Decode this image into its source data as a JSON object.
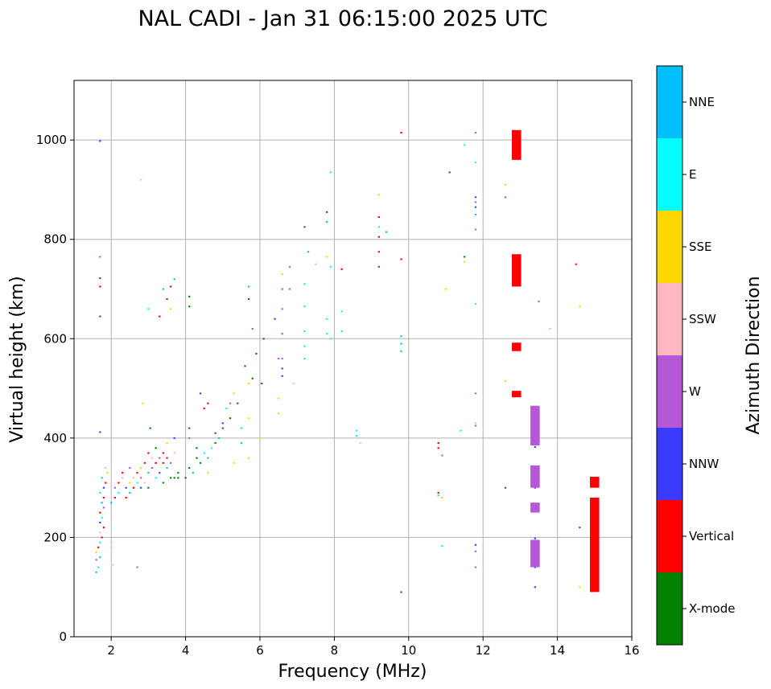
{
  "chart_data": {
    "type": "scatter",
    "title": "NAL CADI - Jan 31 06:15:00 2025 UTC",
    "xlabel": "Frequency (MHz)",
    "ylabel": "Virtual height (km)",
    "xlim": [
      1,
      16
    ],
    "ylim": [
      0,
      1120
    ],
    "xticks": [
      2,
      4,
      6,
      8,
      10,
      12,
      14,
      16
    ],
    "yticks": [
      0,
      200,
      400,
      600,
      800,
      1000
    ],
    "grid": true,
    "colorbar": {
      "label": "Azimuth Direction",
      "categories": [
        {
          "name": "X-mode",
          "color": "#008000"
        },
        {
          "name": "Vertical",
          "color": "#ff0000"
        },
        {
          "name": "NNW",
          "color": "#3a3aff"
        },
        {
          "name": "W",
          "color": "#b557d6"
        },
        {
          "name": "SSW",
          "color": "#ffb6c1"
        },
        {
          "name": "SSE",
          "color": "#ffd700"
        },
        {
          "name": "E",
          "color": "#00ffff"
        },
        {
          "name": "NNE",
          "color": "#00bfff"
        }
      ]
    },
    "bin_width_mhz": 0.05,
    "bin_height_km": 3,
    "points": [
      [
        1.7,
        998,
        "NNW"
      ],
      [
        1.7,
        765,
        "W"
      ],
      [
        1.7,
        722,
        "NNW"
      ],
      [
        1.7,
        705,
        "Vertical"
      ],
      [
        1.7,
        645,
        "NNW"
      ],
      [
        1.7,
        412,
        "NNW"
      ],
      [
        1.6,
        130,
        "NNE"
      ],
      [
        1.65,
        140,
        "E"
      ],
      [
        1.6,
        155,
        "W"
      ],
      [
        1.7,
        160,
        "NNE"
      ],
      [
        1.6,
        170,
        "SSE"
      ],
      [
        1.65,
        180,
        "Vertical"
      ],
      [
        1.7,
        190,
        "E"
      ],
      [
        1.75,
        200,
        "Vertical"
      ],
      [
        1.7,
        210,
        "SSW"
      ],
      [
        1.8,
        220,
        "Vertical"
      ],
      [
        1.7,
        230,
        "NNW"
      ],
      [
        1.75,
        240,
        "E"
      ],
      [
        1.7,
        250,
        "Vertical"
      ],
      [
        1.8,
        260,
        "W"
      ],
      [
        1.75,
        270,
        "NNE"
      ],
      [
        1.8,
        280,
        "Vertical"
      ],
      [
        1.7,
        290,
        "E"
      ],
      [
        1.8,
        300,
        "NNW"
      ],
      [
        1.85,
        310,
        "Vertical"
      ],
      [
        1.75,
        320,
        "NNE"
      ],
      [
        1.9,
        330,
        "SSE"
      ],
      [
        1.85,
        340,
        "SSW"
      ],
      [
        2.0,
        190,
        "SSW"
      ],
      [
        2.0,
        180,
        "SSW"
      ],
      [
        2.05,
        145,
        "SSW"
      ],
      [
        2.0,
        270,
        "NNE"
      ],
      [
        2.1,
        280,
        "Vertical"
      ],
      [
        2.1,
        300,
        "W"
      ],
      [
        2.2,
        310,
        "Vertical"
      ],
      [
        2.2,
        290,
        "E"
      ],
      [
        2.3,
        320,
        "SSW"
      ],
      [
        2.3,
        330,
        "Vertical"
      ],
      [
        2.4,
        300,
        "NNW"
      ],
      [
        2.4,
        280,
        "Vertical"
      ],
      [
        2.5,
        310,
        "SSE"
      ],
      [
        2.5,
        290,
        "NNE"
      ],
      [
        2.5,
        340,
        "W"
      ],
      [
        2.6,
        300,
        "Vertical"
      ],
      [
        2.6,
        320,
        "SSW"
      ],
      [
        2.7,
        310,
        "E"
      ],
      [
        2.7,
        330,
        "Vertical"
      ],
      [
        2.8,
        300,
        "NNW"
      ],
      [
        2.8,
        340,
        "SSE"
      ],
      [
        2.8,
        320,
        "W"
      ],
      [
        2.9,
        350,
        "Vertical"
      ],
      [
        2.9,
        310,
        "SSW"
      ],
      [
        3.0,
        330,
        "NNE"
      ],
      [
        3.0,
        370,
        "Vertical"
      ],
      [
        3.0,
        300,
        "X-mode"
      ],
      [
        3.1,
        340,
        "W"
      ],
      [
        3.1,
        360,
        "SSW"
      ],
      [
        3.2,
        320,
        "E"
      ],
      [
        3.2,
        350,
        "Vertical"
      ],
      [
        3.2,
        380,
        "X-mode"
      ],
      [
        3.3,
        330,
        "NNW"
      ],
      [
        3.3,
        360,
        "W"
      ],
      [
        3.4,
        370,
        "Vertical"
      ],
      [
        3.4,
        350,
        "Vertical"
      ],
      [
        3.4,
        310,
        "X-mode"
      ],
      [
        3.5,
        360,
        "Vertical"
      ],
      [
        3.5,
        340,
        "NNE"
      ],
      [
        3.5,
        390,
        "SSE"
      ],
      [
        3.6,
        320,
        "X-mode"
      ],
      [
        3.6,
        350,
        "W"
      ],
      [
        3.7,
        320,
        "X-mode"
      ],
      [
        3.7,
        370,
        "SSW"
      ],
      [
        3.7,
        400,
        "NNW"
      ],
      [
        3.8,
        320,
        "X-mode"
      ],
      [
        3.8,
        330,
        "X-mode"
      ],
      [
        3.4,
        700,
        "NNE"
      ],
      [
        3.5,
        680,
        "Vertical"
      ],
      [
        3.6,
        660,
        "SSE"
      ],
      [
        3.3,
        645,
        "Vertical"
      ],
      [
        3.6,
        705,
        "Vertical"
      ],
      [
        3.7,
        720,
        "NNE"
      ],
      [
        2.8,
        920,
        "SSW"
      ],
      [
        2.85,
        470,
        "SSE"
      ],
      [
        3.05,
        420,
        "X-mode"
      ],
      [
        3.0,
        660,
        "E"
      ],
      [
        2.7,
        140,
        "W"
      ],
      [
        4.0,
        320,
        "X-mode"
      ],
      [
        4.1,
        340,
        "X-mode"
      ],
      [
        4.1,
        400,
        "W"
      ],
      [
        4.1,
        420,
        "NNW"
      ],
      [
        4.2,
        330,
        "NNE"
      ],
      [
        4.3,
        360,
        "X-mode"
      ],
      [
        4.3,
        380,
        "X-mode"
      ],
      [
        4.4,
        350,
        "X-mode"
      ],
      [
        4.5,
        370,
        "E"
      ],
      [
        4.6,
        360,
        "NNE"
      ],
      [
        4.6,
        330,
        "SSE"
      ],
      [
        4.7,
        380,
        "E"
      ],
      [
        4.8,
        390,
        "X-mode"
      ],
      [
        4.8,
        410,
        "NNW"
      ],
      [
        4.9,
        400,
        "NNE"
      ],
      [
        5.0,
        420,
        "X-mode"
      ],
      [
        5.0,
        430,
        "NNW"
      ],
      [
        5.1,
        460,
        "E"
      ],
      [
        5.2,
        470,
        "W"
      ],
      [
        5.2,
        440,
        "X-mode"
      ],
      [
        5.3,
        350,
        "SSE"
      ],
      [
        5.3,
        490,
        "SSE"
      ],
      [
        5.4,
        470,
        "X-mode"
      ],
      [
        5.5,
        390,
        "NNE"
      ],
      [
        5.5,
        420,
        "E"
      ],
      [
        5.6,
        545,
        "X-mode"
      ],
      [
        5.7,
        510,
        "SSE"
      ],
      [
        5.7,
        440,
        "SSE"
      ],
      [
        5.7,
        360,
        "SSE"
      ],
      [
        5.8,
        520,
        "X-mode"
      ],
      [
        5.7,
        680,
        "X-mode"
      ],
      [
        5.7,
        705,
        "NNE"
      ],
      [
        5.8,
        620,
        "W"
      ],
      [
        5.9,
        570,
        "X-mode"
      ],
      [
        4.1,
        685,
        "X-mode"
      ],
      [
        4.1,
        665,
        "X-mode"
      ],
      [
        4.4,
        490,
        "NNW"
      ],
      [
        4.6,
        470,
        "Vertical"
      ],
      [
        4.5,
        460,
        "Vertical"
      ],
      [
        6.0,
        400,
        "SSE"
      ],
      [
        6.05,
        510,
        "NNW"
      ],
      [
        6.1,
        600,
        "X-mode"
      ],
      [
        6.4,
        640,
        "NNW"
      ],
      [
        6.5,
        560,
        "W"
      ],
      [
        6.5,
        480,
        "SSE"
      ],
      [
        6.5,
        450,
        "SSE"
      ],
      [
        6.6,
        730,
        "SSE"
      ],
      [
        6.6,
        700,
        "W"
      ],
      [
        6.6,
        660,
        "W"
      ],
      [
        6.6,
        610,
        "W"
      ],
      [
        6.6,
        560,
        "W"
      ],
      [
        6.6,
        540,
        "NNW"
      ],
      [
        6.6,
        525,
        "NNW"
      ],
      [
        6.8,
        745,
        "W"
      ],
      [
        6.8,
        700,
        "W"
      ],
      [
        6.9,
        510,
        "SSW"
      ],
      [
        7.2,
        710,
        "E"
      ],
      [
        7.2,
        665,
        "E"
      ],
      [
        7.2,
        615,
        "E"
      ],
      [
        7.2,
        585,
        "E"
      ],
      [
        7.2,
        560,
        "E"
      ],
      [
        7.3,
        775,
        "NNE"
      ],
      [
        7.2,
        825,
        "NNW"
      ],
      [
        7.5,
        750,
        "SSW"
      ],
      [
        7.8,
        855,
        "X-mode"
      ],
      [
        7.8,
        835,
        "NNE"
      ],
      [
        7.8,
        765,
        "SSE"
      ],
      [
        7.8,
        610,
        "E"
      ],
      [
        7.8,
        640,
        "E"
      ],
      [
        7.9,
        935,
        "E"
      ],
      [
        7.9,
        745,
        "E"
      ],
      [
        7.9,
        600,
        "E"
      ],
      [
        8.2,
        740,
        "Vertical"
      ],
      [
        8.2,
        655,
        "E"
      ],
      [
        8.2,
        615,
        "E"
      ],
      [
        8.6,
        415,
        "E"
      ],
      [
        8.6,
        405,
        "E"
      ],
      [
        8.7,
        390,
        "SSW"
      ],
      [
        9.2,
        890,
        "SSE"
      ],
      [
        9.2,
        845,
        "Vertical"
      ],
      [
        9.2,
        825,
        "E"
      ],
      [
        9.2,
        805,
        "Vertical"
      ],
      [
        9.2,
        775,
        "Vertical"
      ],
      [
        9.2,
        745,
        "X-mode"
      ],
      [
        9.4,
        815,
        "NNE"
      ],
      [
        9.8,
        1015,
        "Vertical"
      ],
      [
        9.8,
        760,
        "Vertical"
      ],
      [
        9.8,
        605,
        "NNE"
      ],
      [
        9.8,
        590,
        "NNE"
      ],
      [
        9.8,
        575,
        "NNE"
      ],
      [
        9.8,
        90,
        "X-mode"
      ],
      [
        10.8,
        390,
        "Vertical"
      ],
      [
        10.8,
        380,
        "Vertical"
      ],
      [
        10.9,
        365,
        "W"
      ],
      [
        10.8,
        290,
        "Vertical"
      ],
      [
        10.8,
        285,
        "E"
      ],
      [
        10.9,
        280,
        "SSE"
      ],
      [
        10.9,
        183,
        "E"
      ],
      [
        11.0,
        700,
        "SSE"
      ],
      [
        11.1,
        935,
        "X-mode"
      ],
      [
        11.4,
        415,
        "E"
      ],
      [
        11.5,
        990,
        "E"
      ],
      [
        11.5,
        765,
        "X-mode"
      ],
      [
        11.5,
        755,
        "SSE"
      ],
      [
        11.8,
        1015,
        "W"
      ],
      [
        11.8,
        955,
        "E"
      ],
      [
        11.8,
        885,
        "NNW"
      ],
      [
        11.8,
        875,
        "W"
      ],
      [
        11.8,
        865,
        "NNW"
      ],
      [
        11.8,
        850,
        "NNE"
      ],
      [
        11.8,
        820,
        "W"
      ],
      [
        11.8,
        670,
        "E"
      ],
      [
        11.8,
        490,
        "W"
      ],
      [
        11.8,
        430,
        "SSW"
      ],
      [
        11.8,
        425,
        "W"
      ],
      [
        11.8,
        185,
        "NNW"
      ],
      [
        11.8,
        172,
        "W"
      ],
      [
        11.8,
        140,
        "W"
      ],
      [
        12.6,
        910,
        "SSE"
      ],
      [
        12.6,
        885,
        "W"
      ],
      [
        12.6,
        515,
        "SSE"
      ],
      [
        12.6,
        300,
        "NNW"
      ],
      [
        13.5,
        675,
        "W"
      ],
      [
        13.8,
        620,
        "SSW"
      ],
      [
        14.5,
        750,
        "Vertical"
      ],
      [
        14.6,
        665,
        "SSE"
      ],
      [
        14.6,
        220,
        "NNW"
      ],
      [
        14.6,
        100,
        "SSE"
      ],
      [
        13.4,
        100,
        "NNW"
      ],
      [
        13.4,
        140,
        "NNW"
      ],
      [
        13.4,
        198,
        "NNW"
      ],
      [
        13.4,
        300,
        "NNW"
      ],
      [
        13.4,
        382,
        "NNW"
      ]
    ],
    "columns": [
      {
        "x": 12.9,
        "y_ranges": [
          [
            960,
            1020
          ],
          [
            705,
            770
          ],
          [
            575,
            592
          ],
          [
            482,
            495
          ]
        ],
        "azimuth": "Vertical"
      },
      {
        "x": 13.4,
        "y_ranges": [
          [
            140,
            195
          ],
          [
            250,
            270
          ],
          [
            300,
            345
          ],
          [
            385,
            465
          ]
        ],
        "azimuth": "W"
      },
      {
        "x": 15.0,
        "y_ranges": [
          [
            90,
            280
          ],
          [
            300,
            322
          ]
        ],
        "azimuth": "Vertical"
      }
    ]
  }
}
